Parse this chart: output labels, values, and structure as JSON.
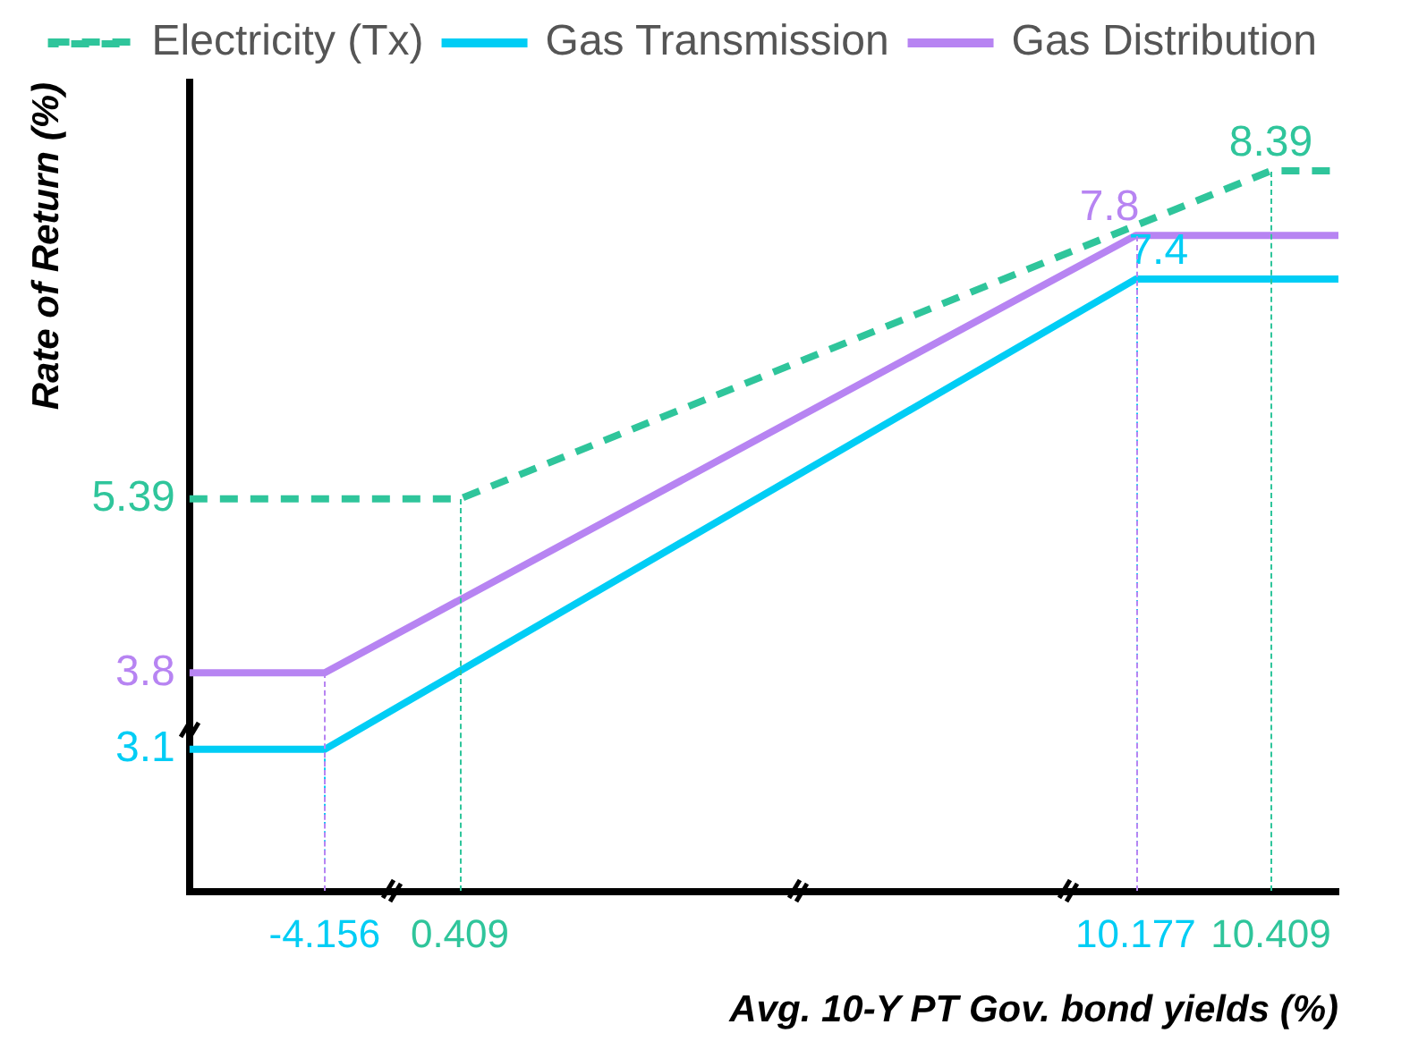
{
  "chart_data": {
    "type": "line",
    "xlabel": "Avg. 10-Y PT Gov. bond yields (%)",
    "ylabel": "Rate of Return (%)",
    "categories": [
      null,
      null,
      "-4.156",
      null,
      "0.409",
      null,
      null,
      null,
      null,
      null,
      null,
      null,
      null,
      null,
      "10.177",
      null,
      "10.409",
      null
    ],
    "series": [
      {
        "name": "Electricity (Tx)",
        "color": "#2fc59b",
        "line_style": "dashed",
        "values": [
          5.39,
          5.39,
          5.39,
          5.39,
          5.39,
          null,
          null,
          null,
          null,
          null,
          null,
          null,
          null,
          null,
          null,
          null,
          8.39,
          8.39
        ],
        "value_labels": [
          null,
          null,
          null,
          null,
          null,
          null,
          null,
          null,
          null,
          null,
          null,
          null,
          null,
          null,
          null,
          null,
          "8.39",
          null
        ]
      },
      {
        "name": "Gas Transmission",
        "color": "#00cdf5",
        "line_style": "solid",
        "values": [
          3.1,
          3.1,
          3.1,
          null,
          null,
          null,
          null,
          null,
          null,
          null,
          null,
          null,
          null,
          null,
          7.4,
          7.4,
          7.4,
          7.4
        ],
        "value_labels": [
          null,
          null,
          null,
          null,
          null,
          null,
          null,
          null,
          null,
          null,
          null,
          null,
          null,
          null,
          "7.4",
          null,
          null,
          null
        ]
      },
      {
        "name": "Gas Distribution",
        "color": "#b784f2",
        "line_style": "solid",
        "values": [
          3.8,
          3.8,
          3.8,
          null,
          null,
          null,
          null,
          null,
          null,
          null,
          null,
          null,
          null,
          null,
          7.8,
          7.8,
          7.8,
          7.8
        ],
        "value_labels": [
          null,
          null,
          null,
          null,
          null,
          null,
          null,
          null,
          null,
          null,
          null,
          null,
          null,
          null,
          "7.8",
          null,
          null,
          null
        ]
      }
    ],
    "ylim": [
      1.8,
      9.2
    ],
    "yticks": [
      3.1,
      3.8,
      5.39
    ],
    "grid": false,
    "legend": "top",
    "marker": "none"
  }
}
